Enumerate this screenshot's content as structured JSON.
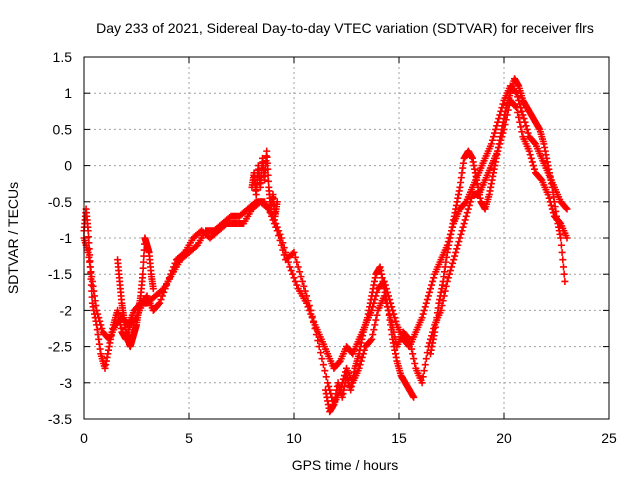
{
  "chart_data": {
    "type": "scatter",
    "title": "Day 233 of 2021, Sidereal Day-to-day VTEC variation (SDTVAR) for receiver flrs",
    "xlabel": "GPS time / hours",
    "ylabel": "SDTVAR / TECUs",
    "xlim": [
      0,
      25
    ],
    "ylim": [
      -3.5,
      1.5
    ],
    "x_ticks": [
      0,
      5,
      10,
      15,
      20,
      25
    ],
    "y_ticks": [
      -3.5,
      -3,
      -2.5,
      -2,
      -1.5,
      -1,
      -0.5,
      0,
      0.5,
      1,
      1.5
    ],
    "x_tick_labels": [
      "0",
      "5",
      "10",
      "15",
      "20",
      "25"
    ],
    "y_tick_labels": [
      "-3.5",
      "-3",
      "-2.5",
      "-2",
      "-1.5",
      "-1",
      "-0.5",
      "0",
      "0.5",
      "1",
      "1.5"
    ],
    "grid": true,
    "marker": "+",
    "color": "#ff0000",
    "series": [
      {
        "x": [
          0.0,
          0.1,
          0.2,
          0.3,
          0.4,
          0.6,
          0.8,
          1.0,
          1.2,
          1.4,
          1.6,
          1.8,
          2.0,
          2.2,
          2.5,
          2.8,
          3.0,
          3.3,
          3.6,
          4.0,
          4.4,
          4.8,
          5.2,
          5.6,
          6.0,
          6.4,
          6.8,
          7.2,
          7.6,
          8.0,
          8.4,
          8.8,
          9.2,
          9.6,
          10.0,
          10.4,
          10.8,
          11.2,
          11.6,
          11.9,
          12.2,
          12.5,
          12.8,
          13.1,
          13.4,
          13.7,
          14.0,
          14.3,
          14.6,
          14.9,
          15.2,
          15.5,
          15.8,
          16.1,
          16.4,
          16.7,
          17.0,
          17.3,
          17.6,
          17.9,
          18.2,
          18.5,
          18.8,
          19.1,
          19.4,
          19.7,
          20.0,
          20.3,
          20.6,
          20.9,
          21.2,
          21.5,
          21.8,
          22.1,
          22.4,
          22.7,
          23.0
        ],
        "y": [
          -0.9,
          -0.6,
          -0.9,
          -1.4,
          -1.9,
          -2.2,
          -2.6,
          -2.8,
          -2.5,
          -2.2,
          -2.0,
          -2.3,
          -2.4,
          -2.2,
          -2.1,
          -1.9,
          -1.8,
          -2.0,
          -1.9,
          -1.6,
          -1.3,
          -1.2,
          -1.0,
          -0.9,
          -1.0,
          -0.9,
          -0.8,
          -0.8,
          -0.8,
          -0.6,
          -0.5,
          -0.6,
          -0.9,
          -1.3,
          -1.2,
          -1.6,
          -2.0,
          -2.5,
          -3.0,
          -3.3,
          -3.1,
          -2.8,
          -3.0,
          -2.8,
          -2.5,
          -2.4,
          -2.0,
          -1.8,
          -2.1,
          -2.5,
          -2.3,
          -2.4,
          -2.8,
          -3.0,
          -2.5,
          -2.2,
          -2.0,
          -1.6,
          -1.3,
          -1.0,
          -0.7,
          -0.4,
          -0.4,
          -0.2,
          0.0,
          0.2,
          0.5,
          0.9,
          0.8,
          0.4,
          0.2,
          -0.1,
          -0.2,
          -0.4,
          -0.7,
          -0.8,
          -1.0
        ]
      },
      {
        "x": [
          0.0,
          0.2,
          0.4,
          0.6,
          0.9,
          1.2,
          1.5,
          1.8,
          2.1,
          2.4,
          2.7,
          3.0,
          3.4,
          3.8,
          4.2,
          4.6,
          5.0,
          5.4,
          5.8,
          6.2,
          6.6,
          7.0,
          7.4,
          7.8,
          8.2,
          8.6,
          9.0,
          9.4,
          9.8,
          10.2,
          10.6,
          11.0,
          11.3,
          11.6,
          11.9,
          12.2,
          12.5,
          12.8,
          13.1,
          13.4,
          13.7,
          14.0,
          14.3,
          14.6,
          14.9,
          15.2,
          15.5,
          15.8,
          16.1,
          16.4,
          16.7,
          17.0,
          17.3,
          17.6,
          17.9,
          18.2,
          18.5,
          18.8,
          19.1,
          19.4,
          19.7,
          20.0,
          20.3,
          20.6,
          20.9,
          21.2,
          21.5,
          21.8,
          22.1,
          22.4,
          22.7,
          23.0
        ],
        "y": [
          -1.0,
          -1.2,
          -1.6,
          -2.0,
          -2.3,
          -2.4,
          -2.2,
          -2.1,
          -2.2,
          -2.0,
          -1.9,
          -1.9,
          -1.8,
          -1.7,
          -1.5,
          -1.3,
          -1.2,
          -1.1,
          -0.9,
          -0.9,
          -0.8,
          -0.7,
          -0.7,
          -0.6,
          -0.5,
          -0.5,
          -0.7,
          -1.0,
          -1.4,
          -1.7,
          -1.9,
          -2.2,
          -2.4,
          -2.6,
          -2.8,
          -2.7,
          -2.5,
          -2.6,
          -2.4,
          -2.2,
          -2.0,
          -1.7,
          -1.6,
          -1.9,
          -2.2,
          -2.4,
          -2.5,
          -2.3,
          -2.1,
          -1.8,
          -1.5,
          -1.3,
          -1.1,
          -0.8,
          -0.6,
          -0.5,
          -0.3,
          -0.1,
          0.1,
          0.3,
          0.6,
          0.9,
          1.1,
          1.0,
          0.7,
          0.4,
          0.3,
          0.1,
          -0.1,
          -0.3,
          -0.5,
          -0.6
        ]
      },
      {
        "x": [
          1.6,
          1.7,
          1.8,
          1.9,
          2.0,
          2.1,
          2.2,
          2.3,
          2.4,
          2.5,
          2.6,
          2.7,
          2.8,
          2.9,
          3.0,
          3.1,
          3.2,
          3.3
        ],
        "y": [
          -1.3,
          -1.6,
          -1.9,
          -2.1,
          -2.3,
          -2.4,
          -2.5,
          -2.4,
          -2.3,
          -2.2,
          -2.0,
          -1.8,
          -1.5,
          -1.0,
          -1.1,
          -1.2,
          -1.5,
          -1.7
        ]
      },
      {
        "x": [
          8.0,
          8.1,
          8.2,
          8.3,
          8.4,
          8.5,
          8.6,
          8.7,
          8.8,
          8.9,
          9.0,
          9.1,
          9.2
        ],
        "y": [
          -0.3,
          -0.1,
          -0.4,
          0.0,
          -0.3,
          0.1,
          -0.2,
          0.2,
          -0.3,
          -0.6,
          -0.4,
          -0.7,
          -0.5
        ]
      },
      {
        "x": [
          16.5,
          16.7,
          16.9,
          17.1,
          17.3,
          17.5,
          17.7,
          17.9,
          18.1,
          18.3,
          18.5,
          18.7,
          18.9,
          19.1,
          19.3,
          19.5,
          19.7,
          19.9,
          20.1,
          20.3,
          20.5,
          20.7,
          20.9,
          21.1,
          21.3,
          21.5,
          21.7,
          21.9,
          22.1,
          22.3,
          22.5,
          22.7,
          22.9
        ],
        "y": [
          -2.6,
          -2.3,
          -1.9,
          -1.6,
          -1.2,
          -0.9,
          -0.6,
          -0.3,
          0.1,
          0.2,
          0.1,
          -0.2,
          -0.5,
          -0.6,
          -0.4,
          -0.1,
          0.2,
          0.5,
          0.8,
          1.0,
          1.2,
          1.1,
          0.9,
          0.8,
          0.7,
          0.6,
          0.5,
          0.3,
          0.0,
          -0.3,
          -0.7,
          -1.0,
          -1.6
        ]
      },
      {
        "x": [
          11.5,
          11.7,
          11.9,
          12.1,
          12.3,
          12.5,
          12.7,
          12.9,
          13.1,
          13.3,
          13.5,
          13.7,
          13.9,
          14.1,
          14.3,
          14.5,
          14.7,
          14.9,
          15.1,
          15.3,
          15.5,
          15.7
        ],
        "y": [
          -3.1,
          -3.4,
          -3.3,
          -3.0,
          -3.2,
          -2.9,
          -3.1,
          -2.8,
          -2.6,
          -2.3,
          -2.1,
          -1.8,
          -1.5,
          -1.4,
          -1.7,
          -2.0,
          -2.4,
          -2.7,
          -2.9,
          -3.0,
          -3.1,
          -3.2
        ]
      }
    ]
  }
}
